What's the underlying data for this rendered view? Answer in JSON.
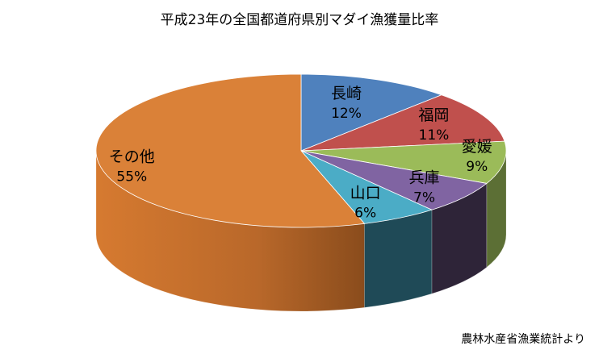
{
  "chart_data": {
    "type": "pie",
    "title": "平成23年の全国都道府県別マダイ漁獲量比率",
    "source_note": "農林水産省漁業統計より",
    "style": "3d",
    "slices": [
      {
        "name": "長崎",
        "value": 12,
        "label": "12%",
        "color": "#4f81bd",
        "side_color": "#2c4a70"
      },
      {
        "name": "福岡",
        "value": 11,
        "label": "11%",
        "color": "#c0504d",
        "side_color": "#72302e"
      },
      {
        "name": "愛媛",
        "value": 9,
        "label": "9%",
        "color": "#9bbb59",
        "side_color": "#5c6f35"
      },
      {
        "name": "兵庫",
        "value": 7,
        "label": "7%",
        "color": "#8064a2",
        "side_color": "#2e2438"
      },
      {
        "name": "山口",
        "value": 6,
        "label": "6%",
        "color": "#4bacc6",
        "side_color": "#1f4a57"
      },
      {
        "name": "その他",
        "value": 55,
        "label": "55%",
        "color": "#da8138",
        "side_color": "#a65a22"
      }
    ]
  }
}
